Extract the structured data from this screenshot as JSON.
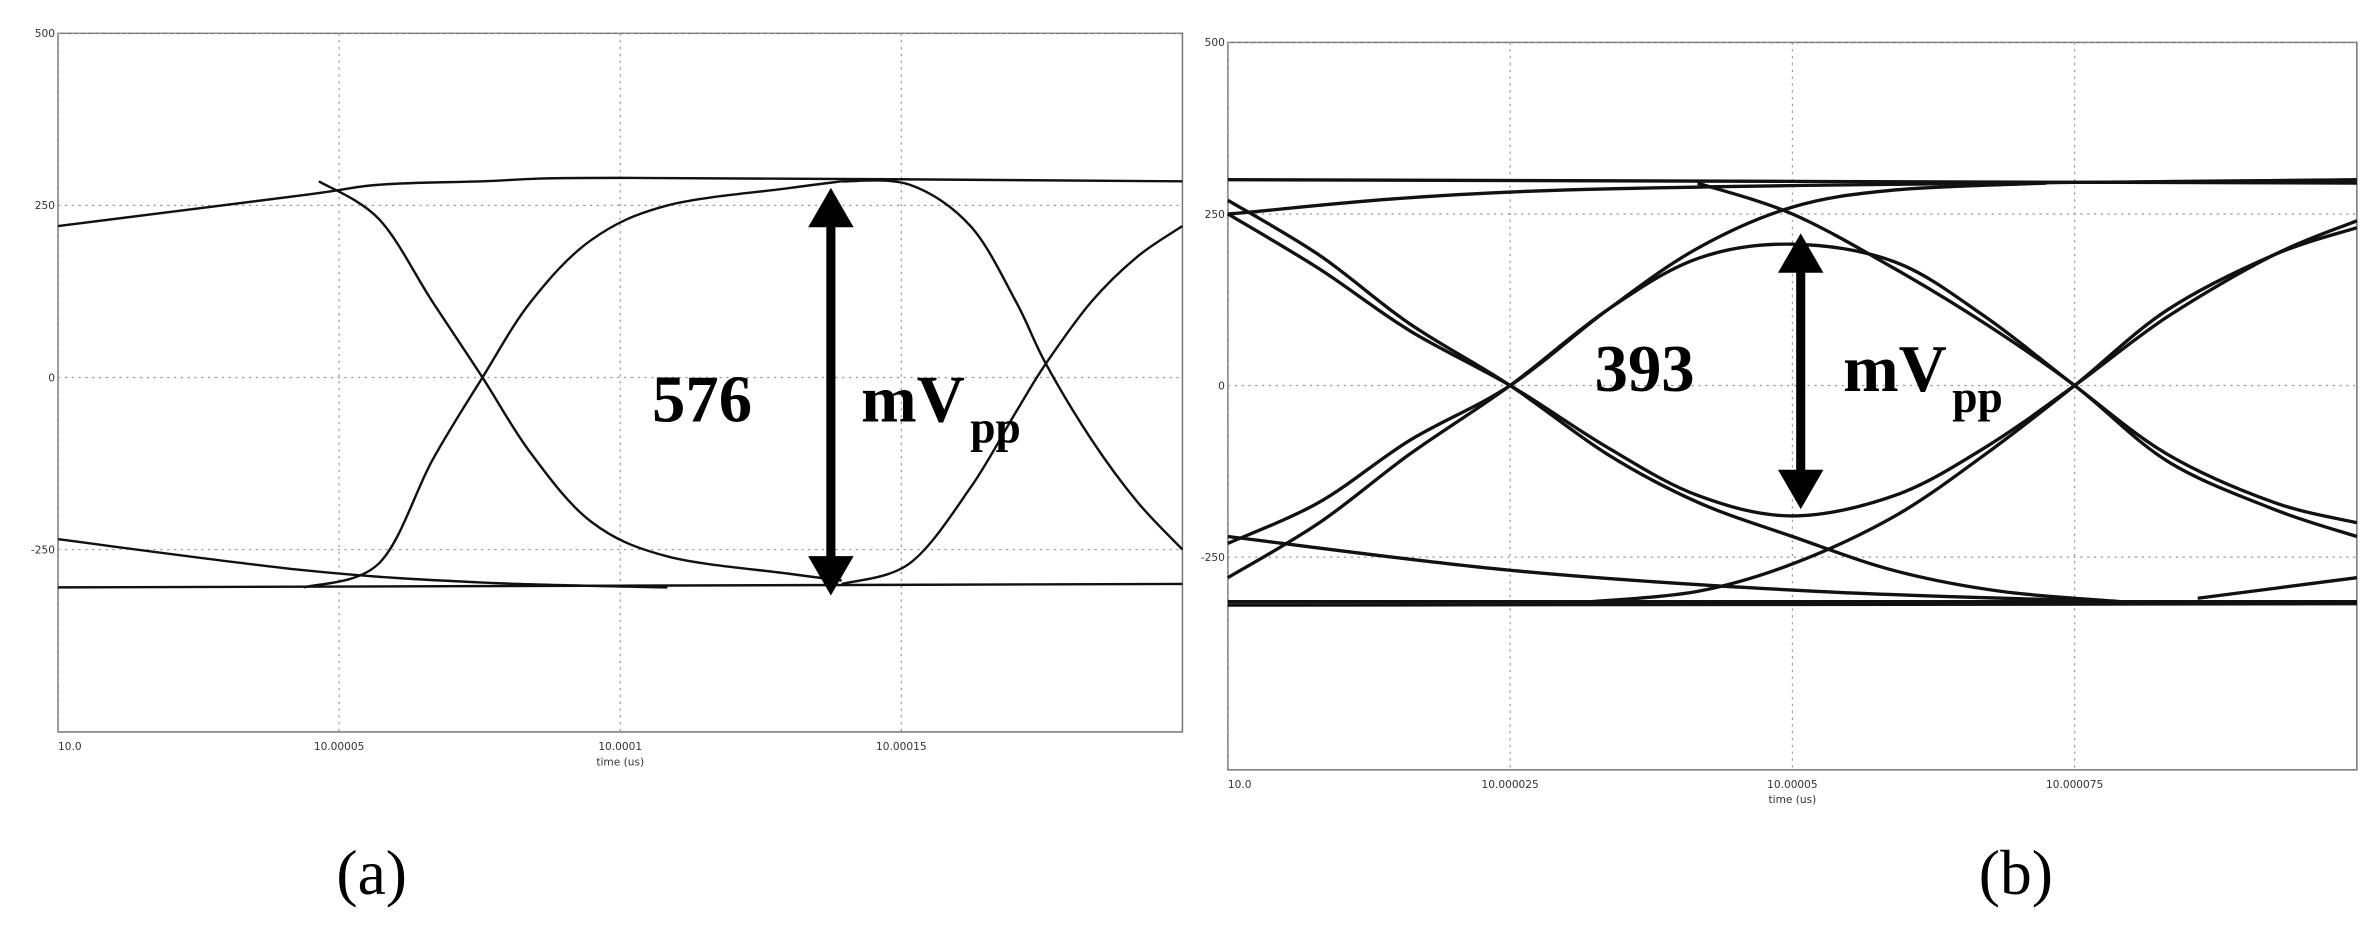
{
  "chart_data": [
    {
      "type": "line",
      "panel_label": "(a)",
      "xlabel": "time (us)",
      "annotation": {
        "value": "576",
        "unit": "mV",
        "subscript": "pp"
      },
      "xlim": [
        10.0,
        10.0002
      ],
      "ylim": [
        -515,
        500
      ],
      "xticks": [
        {
          "value": 10.0,
          "label": "10.0"
        },
        10.00005,
        10.0001,
        10.00015
      ],
      "yticks": [
        500,
        250,
        0,
        -250
      ],
      "grid": true,
      "series": [
        {
          "color": "#111111",
          "x": [
            10.0,
            10.0000437,
            10.0000571,
            10.0000755,
            10.0001,
            10.0002
          ],
          "values": [
            220,
            265,
            280,
            285,
            290,
            285
          ]
        },
        {
          "color": "#111111",
          "x": [
            10.0,
            10.0002
          ],
          "values": [
            -305,
            -300
          ]
        },
        {
          "color": "#111111",
          "x": [
            10.0,
            10.0000437,
            10.0000755,
            10.0001084
          ],
          "values": [
            -235,
            -280,
            -298,
            -305
          ]
        },
        {
          "color": "#111111",
          "x": [
            10.0000464,
            10.0000571,
            10.0000666,
            10.0000755,
            10.0000841,
            10.0000949,
            10.0001084,
            10.0001299,
            10.0001394
          ],
          "values": [
            285,
            230,
            110,
            0,
            -110,
            -210,
            -260,
            -285,
            -295
          ]
        },
        {
          "color": "#111111",
          "x": [
            10.0000437,
            10.0000571,
            10.0000666,
            10.0000755,
            10.0000841,
            10.0000949,
            10.0001084,
            10.0001299,
            10.0001394
          ],
          "values": [
            -305,
            -270,
            -120,
            0,
            110,
            200,
            250,
            275,
            285
          ]
        },
        {
          "color": "#111111",
          "x": [
            10.0001394,
            10.0001515,
            10.0001623,
            10.0001704,
            10.0001757,
            10.0001838,
            10.0001919,
            10.0002
          ],
          "values": [
            285,
            280,
            220,
            110,
            20,
            -90,
            -180,
            -250
          ]
        },
        {
          "color": "#111111",
          "x": [
            10.0001394,
            10.0001515,
            10.0001623,
            10.0001704,
            10.0001757,
            10.0001838,
            10.0001919,
            10.0002
          ],
          "values": [
            -300,
            -270,
            -160,
            -50,
            20,
            110,
            175,
            220
          ]
        }
      ]
    },
    {
      "type": "line",
      "panel_label": "(b)",
      "xlabel": "time (us)",
      "annotation": {
        "value": "393",
        "unit": "mV",
        "subscript": "pp"
      },
      "xlim": [
        10.0,
        10.0001
      ],
      "ylim": [
        -560,
        500
      ],
      "xticks": [
        {
          "value": 10.0,
          "label": "10.0"
        },
        10.000025,
        10.00005,
        10.000075
      ],
      "yticks": [
        500,
        250,
        0,
        -250
      ],
      "grid": true,
      "series": [
        {
          "color": "#111111",
          "x": [
            10.0,
            10.0000081,
            10.0000161,
            10.000025,
            10.0000336,
            10.0000416,
            10.00005,
            10.0000591,
            10.0000671,
            10.000075,
            10.0000832,
            10.0000926,
            10.0001
          ],
          "values": [
            -280,
            -200,
            -100,
            0,
            110,
            185,
            206,
            180,
            100,
            0,
            -100,
            -170,
            -200
          ]
        },
        {
          "color": "#111111",
          "x": [
            10.0,
            10.0000081,
            10.0000161,
            10.000025,
            10.0000336,
            10.0000416,
            10.00005,
            10.0000591,
            10.0000671,
            10.000075,
            10.0000832,
            10.0000926,
            10.0001
          ],
          "values": [
            250,
            170,
            80,
            0,
            -90,
            -160,
            -190,
            -160,
            -90,
            0,
            100,
            190,
            240
          ]
        },
        {
          "color": "#111111",
          "x": [
            10.0,
            10.0000081,
            10.0000161,
            10.000025,
            10.0000336,
            10.0000416,
            10.00005,
            10.0000591,
            10.0000685,
            10.0000792
          ],
          "values": [
            270,
            190,
            90,
            0,
            -100,
            -170,
            -220,
            -270,
            -300,
            -315
          ]
        },
        {
          "color": "#111111",
          "x": [
            10.0,
            10.0000081,
            10.0000161,
            10.000025,
            10.0000336,
            10.0000416,
            10.00005,
            10.0000591,
            10.0000725
          ],
          "values": [
            -230,
            -170,
            -80,
            0,
            110,
            200,
            260,
            285,
            295
          ]
        },
        {
          "color": "#111111",
          "x": [
            10.0000416,
            10.00005,
            10.0000591,
            10.0000671,
            10.000075,
            10.0000832,
            10.0000926,
            10.0001
          ],
          "values": [
            295,
            250,
            170,
            90,
            0,
            -110,
            -180,
            -220
          ]
        },
        {
          "color": "#111111",
          "x": [
            10.0000322,
            10.0000416,
            10.00005,
            10.0000591,
            10.0000671,
            10.000075,
            10.0000832,
            10.0000926,
            10.0001
          ],
          "values": [
            -315,
            -300,
            -260,
            -190,
            -100,
            0,
            110,
            190,
            230
          ]
        },
        {
          "color": "#111111",
          "x": [
            10.0,
            10.00003,
            10.0001
          ],
          "values": [
            250,
            285,
            300
          ]
        },
        {
          "color": "#111111",
          "x": [
            10.0,
            10.0001
          ],
          "values": [
            300,
            295
          ]
        },
        {
          "color": "#111111",
          "x": [
            10.0,
            10.0001
          ],
          "values": [
            -315,
            -315
          ]
        },
        {
          "color": "#111111",
          "x": [
            10.0,
            10.0001
          ],
          "values": [
            -320,
            -318
          ]
        },
        {
          "color": "#111111",
          "x": [
            10.0,
            10.0000255,
            10.0000523,
            10.0000792
          ],
          "values": [
            -220,
            -270,
            -300,
            -315
          ]
        },
        {
          "color": "#111111",
          "x": [
            10.0000859,
            10.0001
          ],
          "values": [
            -310,
            -280
          ]
        }
      ]
    }
  ]
}
